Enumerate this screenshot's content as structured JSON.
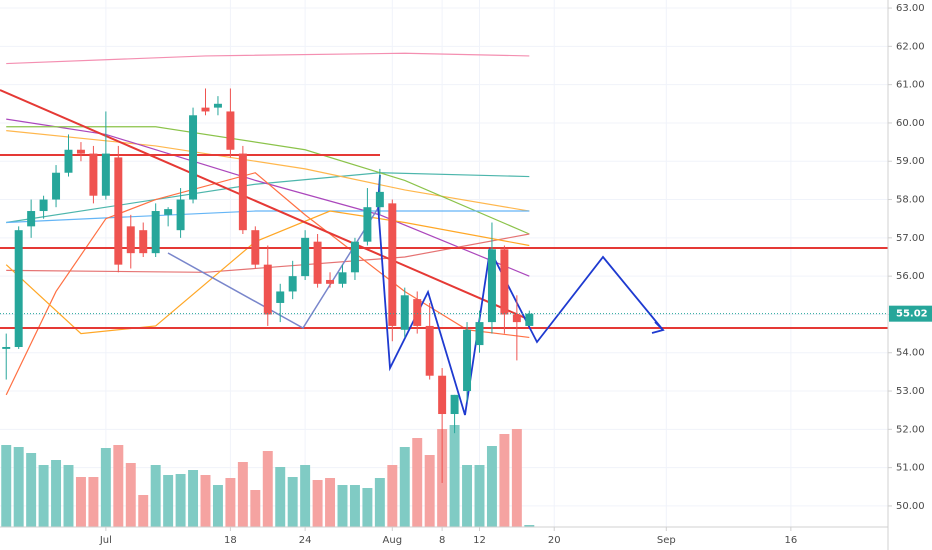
{
  "chart_data": {
    "type": "candlestick",
    "x": [
      0,
      1,
      2,
      3,
      4,
      5,
      6,
      7,
      8,
      9,
      10,
      11,
      12,
      13,
      14,
      15,
      16,
      17,
      18,
      19,
      20,
      21,
      22,
      23,
      24,
      25,
      26,
      27,
      28,
      29,
      30,
      31,
      32,
      33,
      34,
      35,
      36,
      37,
      38,
      39,
      40,
      41,
      42
    ],
    "open": [
      54.1,
      54.15,
      57.3,
      57.7,
      58.0,
      58.7,
      59.3,
      59.2,
      58.1,
      59.1,
      57.3,
      57.2,
      56.6,
      57.6,
      57.2,
      58.0,
      60.4,
      60.4,
      60.3,
      59.2,
      57.2,
      56.3,
      55.3,
      55.6,
      56.0,
      56.9,
      55.9,
      55.8,
      56.1,
      56.9,
      57.8,
      57.9,
      54.6,
      55.4,
      54.7,
      53.4,
      52.4,
      53.0,
      54.2,
      54.8,
      56.7,
      55.0,
      54.7
    ],
    "high": [
      54.5,
      57.3,
      58.0,
      58.1,
      58.9,
      59.7,
      59.5,
      59.4,
      60.3,
      59.4,
      57.6,
      57.4,
      57.9,
      57.8,
      58.3,
      60.4,
      60.9,
      60.7,
      60.9,
      59.4,
      57.3,
      56.8,
      55.8,
      56.4,
      57.2,
      57.1,
      56.1,
      56.3,
      57.0,
      58.3,
      58.8,
      58.0,
      55.7,
      55.6,
      55.3,
      53.6,
      52.9,
      54.8,
      55.1,
      57.4,
      56.8,
      55.5,
      55.1
    ],
    "low": [
      53.3,
      54.1,
      57.0,
      57.5,
      57.8,
      58.6,
      59.0,
      57.9,
      58.0,
      56.1,
      56.2,
      56.5,
      56.5,
      57.3,
      57.0,
      57.9,
      60.2,
      60.2,
      59.1,
      57.1,
      56.2,
      54.7,
      54.8,
      55.4,
      55.9,
      55.7,
      55.7,
      55.7,
      55.9,
      56.8,
      57.6,
      54.3,
      54.4,
      54.5,
      53.3,
      50.6,
      51.9,
      52.7,
      54.0,
      54.5,
      54.5,
      53.8,
      54.7
    ],
    "close": [
      54.15,
      57.2,
      57.7,
      58.0,
      58.7,
      59.3,
      59.2,
      58.1,
      59.2,
      56.3,
      56.6,
      56.6,
      57.7,
      57.75,
      58.0,
      60.2,
      60.3,
      60.5,
      59.3,
      57.2,
      56.3,
      55.0,
      55.6,
      56.0,
      57.0,
      55.8,
      55.8,
      56.1,
      56.9,
      57.8,
      58.2,
      54.7,
      55.5,
      54.7,
      53.4,
      52.4,
      52.9,
      54.6,
      54.8,
      56.7,
      55.0,
      54.8,
      55.02
    ],
    "volume": [
      82,
      80,
      74,
      62,
      67,
      62,
      50,
      50,
      79,
      82,
      64,
      32,
      62,
      52,
      53,
      57,
      52,
      42,
      49,
      65,
      37,
      76,
      60,
      50,
      62,
      47,
      49,
      42,
      42,
      39,
      49,
      62,
      80,
      89,
      72,
      98,
      102,
      62,
      62,
      81,
      93,
      98,
      2
    ],
    "vlim": [
      0,
      120
    ],
    "up_color": "#26a69a",
    "down_color": "#ef5350",
    "up_volume_color": "#80cbc4",
    "down_volume_color": "#f5a3a1",
    "overlays": [
      {
        "color": "#f48fb1",
        "x": [
          0,
          16,
          32,
          42
        ],
        "values": [
          61.55,
          61.75,
          61.82,
          61.75
        ]
      },
      {
        "color": "#4db6ac",
        "x": [
          0,
          20,
          30,
          42
        ],
        "values": [
          57.4,
          58.4,
          58.7,
          58.6
        ]
      },
      {
        "color": "#ffb74d",
        "x": [
          0,
          12,
          24,
          32,
          42
        ],
        "values": [
          59.8,
          59.4,
          58.8,
          58.25,
          57.7
        ]
      },
      {
        "color": "#ab47bc",
        "x": [
          0,
          8,
          20,
          30,
          42
        ],
        "values": [
          60.1,
          59.7,
          58.5,
          57.6,
          56.0
        ]
      },
      {
        "color": "#8bc34a",
        "x": [
          0,
          12,
          24,
          32,
          42
        ],
        "values": [
          59.9,
          59.9,
          59.3,
          58.5,
          57.1
        ]
      },
      {
        "color": "#64b5f6",
        "x": [
          0,
          20,
          42
        ],
        "values": [
          57.4,
          57.7,
          57.7
        ]
      },
      {
        "color": "#e57373",
        "x": [
          0,
          16,
          32,
          42
        ],
        "values": [
          56.15,
          56.1,
          56.5,
          57.1
        ]
      },
      {
        "color": "#ff7043",
        "x": [
          0,
          4,
          8,
          12,
          20,
          24,
          32,
          37,
          42
        ],
        "values": [
          52.9,
          55.6,
          57.5,
          58.0,
          58.7,
          57.6,
          55.6,
          54.6,
          54.4
        ]
      },
      {
        "color": "#ffa726",
        "x": [
          0,
          6,
          12,
          20,
          26,
          32,
          42
        ],
        "values": [
          56.3,
          54.5,
          54.7,
          56.9,
          57.7,
          57.4,
          56.8
        ]
      }
    ],
    "last_price": 55.02,
    "last_price_color": "#26a69a",
    "xlim": [
      -0.5,
      70.8
    ],
    "xticks": [
      {
        "value": 8,
        "label": "Jul"
      },
      18,
      24,
      {
        "value": 31,
        "label": "Aug"
      },
      {
        "value": 35,
        "label": "8"
      },
      {
        "value": 38,
        "label": "12"
      },
      {
        "value": 44,
        "label": "20"
      },
      {
        "value": 53,
        "label": "Sep"
      },
      {
        "value": 63,
        "label": "16"
      }
    ],
    "ylim": [
      49.45,
      63.21
    ],
    "yticks": [
      {
        "value": 50,
        "label": "50.00"
      },
      {
        "value": 51,
        "label": "51.00"
      },
      {
        "value": 52,
        "label": "52.00"
      },
      {
        "value": 53,
        "label": "53.00"
      },
      {
        "value": 54,
        "label": "54.00"
      },
      {
        "value": 55,
        "label": "55.00"
      },
      {
        "value": 56,
        "label": "56.00"
      },
      {
        "value": 57,
        "label": "57.00"
      },
      {
        "value": 58,
        "label": "58.00"
      },
      {
        "value": 59,
        "label": "59.00"
      },
      {
        "value": 60,
        "label": "60.00"
      },
      {
        "value": 61,
        "label": "61.00"
      },
      {
        "value": 62,
        "label": "62.00"
      },
      {
        "value": 63,
        "label": "63.00"
      }
    ],
    "grid": true
  }
}
